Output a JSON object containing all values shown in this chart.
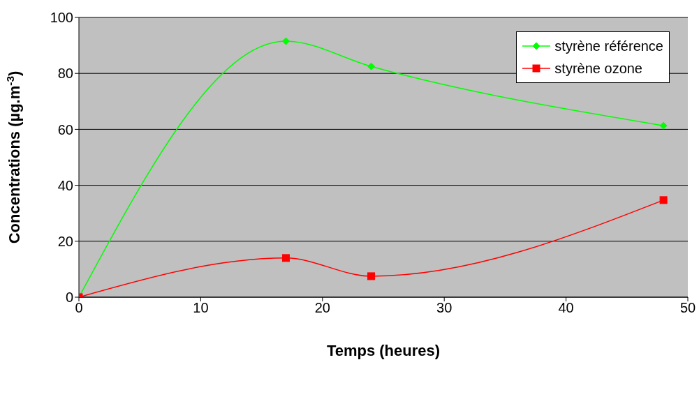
{
  "chart_data": {
    "type": "line",
    "xlabel": "Temps (heures)",
    "ylabel": "Concentrations (µg.m$^{-3}$)",
    "xlim": [
      0,
      50
    ],
    "xticks": [
      0,
      10,
      20,
      30,
      40,
      50
    ],
    "ylim": [
      0,
      100
    ],
    "yticks": [
      0,
      20,
      40,
      60,
      80,
      100
    ],
    "grid": "y",
    "legend": "top right",
    "series": [
      {
        "name": "styrène référence",
        "color": "#00ff00",
        "marker": "diamond",
        "x": [
          0,
          17,
          24,
          48
        ],
        "values": [
          0,
          91.5,
          82.5,
          61.3
        ]
      },
      {
        "name": "styrène ozone",
        "color": "#ff0000",
        "marker": "square",
        "x": [
          0,
          17,
          24,
          48
        ],
        "values": [
          0,
          14,
          7.5,
          34.7
        ]
      }
    ]
  }
}
